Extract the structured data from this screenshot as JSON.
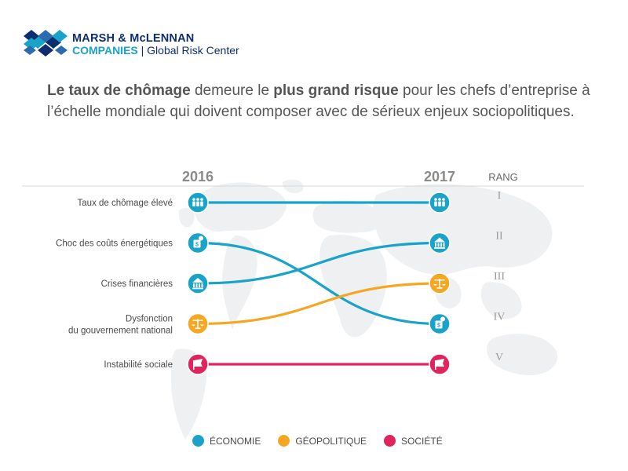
{
  "logo": {
    "line1": "MARSH & McLENNAN",
    "line2a": "COMPANIES",
    "line2b": " | Global Risk Center"
  },
  "headline": {
    "part1": "Le taux de chômage",
    "part2": " demeure le ",
    "part3": "plus grand risque",
    "part4": " pour les chefs d’entreprise à l’échelle mondiale qui doivent composer avec de sérieux enjeux sociopolitiques."
  },
  "chart_data": {
    "type": "slope",
    "x": [
      "2016",
      "2017"
    ],
    "rank_header": "RANG",
    "ranks": [
      "I",
      "II",
      "III",
      "IV",
      "V"
    ],
    "categories": [
      {
        "name": "Taux de chômage élevé",
        "group": "economie",
        "rank_2016": 1,
        "rank_2017": 1,
        "icon": "people-icon"
      },
      {
        "name": "Choc des coûts énergétiques",
        "group": "economie",
        "rank_2016": 2,
        "rank_2017": 4,
        "icon": "fuel-cost-icon"
      },
      {
        "name": "Crises financières",
        "group": "economie",
        "rank_2016": 3,
        "rank_2017": 2,
        "icon": "bank-icon"
      },
      {
        "name": "Dysfonction du gouvernement national",
        "group": "geopolitique",
        "rank_2016": 4,
        "rank_2017": 3,
        "icon": "scales-icon"
      },
      {
        "name": "Instabilité sociale",
        "group": "societe",
        "rank_2016": 5,
        "rank_2017": 5,
        "icon": "protest-flag-icon"
      }
    ],
    "label_lines": [
      [
        "Taux de chômage élevé"
      ],
      [
        "Choc des coûts énergétiques"
      ],
      [
        "Crises financières"
      ],
      [
        "Dysfonction",
        "du gouvernement national"
      ],
      [
        "Instabilité sociale"
      ]
    ],
    "groups": [
      {
        "id": "economie",
        "label": "ÉCONOMIE",
        "color": "#1aa3c9"
      },
      {
        "id": "geopolitique",
        "label": "GÉOPOLITIQUE",
        "color": "#f5a623"
      },
      {
        "id": "societe",
        "label": "SOCIÉTÉ",
        "color": "#e0245e"
      }
    ]
  }
}
